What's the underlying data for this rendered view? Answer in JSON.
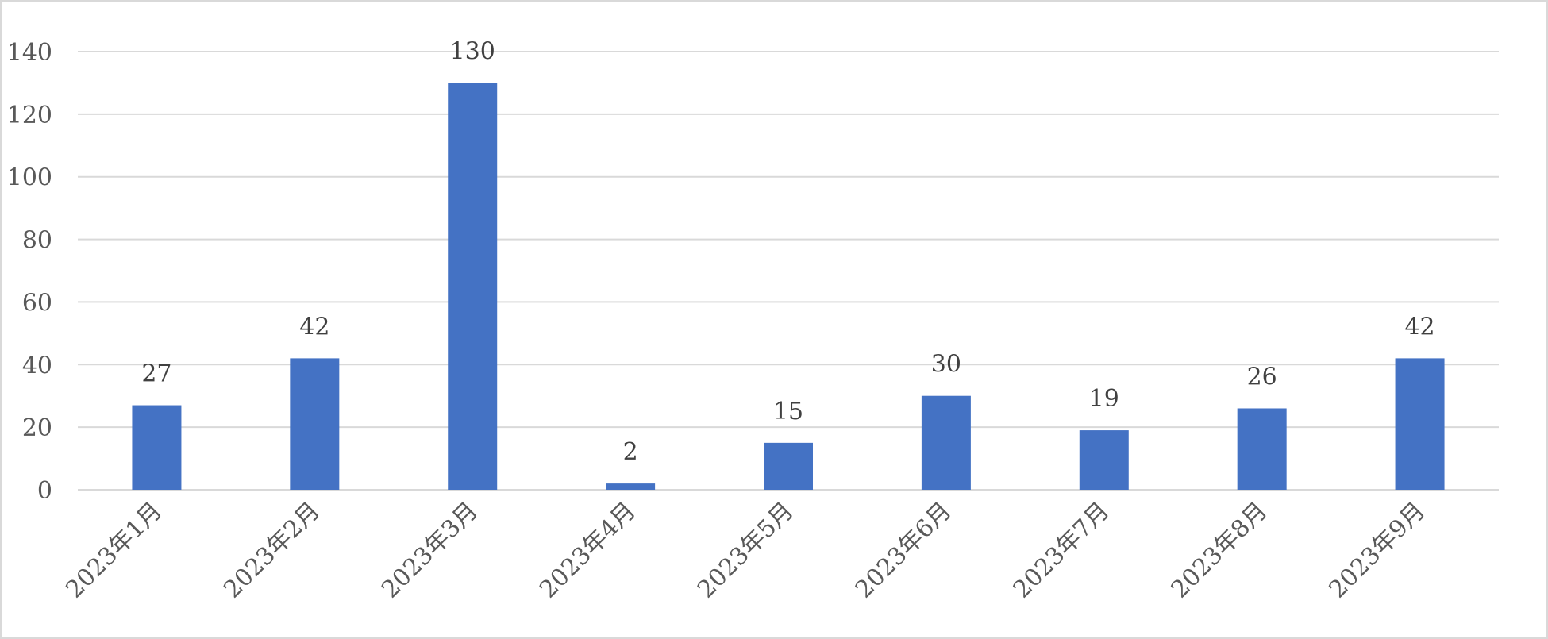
{
  "chart_data": {
    "type": "bar",
    "title": "",
    "xlabel": "",
    "ylabel": "",
    "categories": [
      "2023年1月",
      "2023年2月",
      "2023年3月",
      "2023年4月",
      "2023年5月",
      "2023年6月",
      "2023年7月",
      "2023年8月",
      "2023年9月"
    ],
    "values": [
      27,
      42,
      130,
      2,
      15,
      30,
      19,
      26,
      42
    ],
    "data_labels": [
      "27",
      "42",
      "130",
      "2",
      "15",
      "30",
      "19",
      "26",
      "42"
    ],
    "ylim": [
      0,
      140
    ],
    "yticks": [
      0,
      20,
      40,
      60,
      80,
      100,
      120,
      140
    ],
    "ytick_labels": [
      "0",
      "20",
      "40",
      "60",
      "80",
      "100",
      "120",
      "140"
    ],
    "grid": true,
    "legend": "none",
    "bar_color": "#4472c4",
    "category_label_rotation": "-45"
  }
}
